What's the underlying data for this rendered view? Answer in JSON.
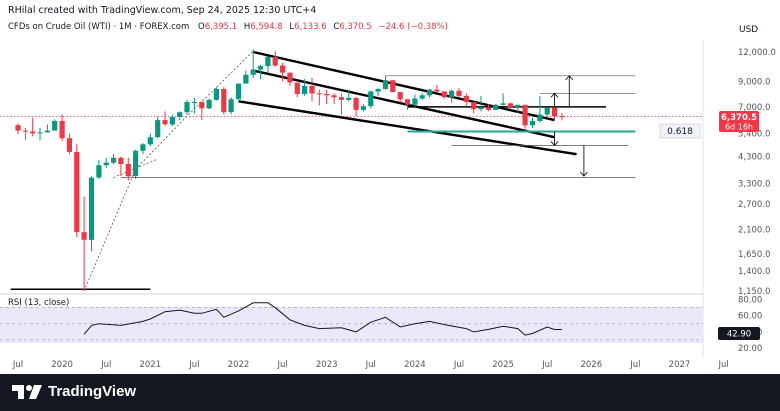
{
  "credit": "RHilal created with TradingView.com, Sep 24, 2025 12:30 UTC+4",
  "instrument": "CFDs on Crude Oil (WTI) · 1M · FOREX.com",
  "ohlc": {
    "o_label": "O",
    "o": "6,395.1",
    "h_label": "H",
    "h": "6,594.8",
    "l_label": "L",
    "l": "6,133.6",
    "c_label": "C",
    "c": "6,370.5",
    "change": "−24.6 (−0.38%)"
  },
  "currency": "USD",
  "price_label": {
    "value": "6,370.5",
    "countdown": "6d 16h",
    "color": "#f23645"
  },
  "fib_label": "0.618",
  "rsi": {
    "title": "RSI (13, close)",
    "value": "42.90",
    "ticks": [
      "80.00",
      "60.00",
      "40.00",
      "20.00"
    ]
  },
  "footer": {
    "brand": "TradingView"
  },
  "colors": {
    "up": "#089981",
    "down": "#f23645",
    "rsi_band": "#e7e2f7",
    "fib": "#26a69a"
  },
  "chart_data": {
    "type": "candlestick",
    "scale": "log",
    "ylim": [
      1150,
      13000
    ],
    "y_ticks": [
      "12,000.0",
      "9,000.0",
      "7,000.0",
      "5,400.0",
      "4,300.0",
      "3,300.0",
      "2,700.0",
      "2,100.0",
      "1,650.0",
      "1,400.0",
      "1,150.0"
    ],
    "y_tick_values": [
      12000,
      9000,
      7000,
      5400,
      4300,
      3300,
      2700,
      2100,
      1650,
      1400,
      1150
    ],
    "x_ticks": [
      "Jul",
      "2020",
      "Jul",
      "2021",
      "Jul",
      "2022",
      "Jul",
      "2023",
      "Jul",
      "2024",
      "Jul",
      "2025",
      "Jul",
      "2026",
      "Jul",
      "2027",
      "Jul"
    ],
    "x_tick_months": [
      "2019-07",
      "2020-01",
      "2020-07",
      "2021-01",
      "2021-07",
      "2022-01",
      "2022-07",
      "2023-01",
      "2023-07",
      "2024-01",
      "2024-07",
      "2025-01",
      "2025-07",
      "2026-01",
      "2026-07",
      "2027-01",
      "2027-07"
    ],
    "candles": [
      [
        "2019-07",
        5850,
        5950,
        5350,
        5550
      ],
      [
        "2019-08",
        5550,
        5700,
        5050,
        5500
      ],
      [
        "2019-09",
        5500,
        6300,
        5250,
        5400
      ],
      [
        "2019-10",
        5400,
        5700,
        5050,
        5450
      ],
      [
        "2019-11",
        5450,
        5900,
        5450,
        5550
      ],
      [
        "2019-12",
        5550,
        6200,
        5550,
        6100
      ],
      [
        "2020-01",
        6100,
        6500,
        5000,
        5150
      ],
      [
        "2020-02",
        5150,
        5400,
        4400,
        4500
      ],
      [
        "2020-03",
        4500,
        4850,
        1950,
        2050
      ],
      [
        "2020-04",
        2050,
        2900,
        1150,
        1900
      ],
      [
        "2020-05",
        1900,
        3550,
        1700,
        3500
      ],
      [
        "2020-06",
        3500,
        4150,
        3450,
        3950
      ],
      [
        "2020-07",
        3950,
        4250,
        3850,
        4050
      ],
      [
        "2020-08",
        4050,
        4400,
        4000,
        4250
      ],
      [
        "2020-09",
        4250,
        4300,
        3550,
        4000
      ],
      [
        "2020-10",
        4000,
        4250,
        3400,
        3550
      ],
      [
        "2020-11",
        3550,
        4600,
        3450,
        4550
      ],
      [
        "2020-12",
        4550,
        4900,
        4400,
        4850
      ],
      [
        "2021-01",
        4850,
        5400,
        4750,
        5200
      ],
      [
        "2021-02",
        5200,
        6350,
        5150,
        6150
      ],
      [
        "2021-03",
        6150,
        6700,
        5800,
        5900
      ],
      [
        "2021-04",
        5900,
        6500,
        5800,
        6350
      ],
      [
        "2021-05",
        6350,
        6700,
        6150,
        6650
      ],
      [
        "2021-06",
        6650,
        7500,
        6500,
        7350
      ],
      [
        "2021-07",
        7350,
        7650,
        6550,
        7350
      ],
      [
        "2021-08",
        7350,
        7400,
        6150,
        6900
      ],
      [
        "2021-09",
        6900,
        7600,
        6850,
        7500
      ],
      [
        "2021-10",
        7500,
        8500,
        7450,
        8350
      ],
      [
        "2021-11",
        8350,
        8500,
        6500,
        6650
      ],
      [
        "2021-12",
        6650,
        7700,
        6500,
        7550
      ],
      [
        "2022-01",
        7550,
        8800,
        7500,
        8800
      ],
      [
        "2022-02",
        8800,
        10000,
        8800,
        9600
      ],
      [
        "2022-03",
        9600,
        12300,
        9300,
        10100
      ],
      [
        "2022-04",
        10100,
        10600,
        9200,
        10450
      ],
      [
        "2022-05",
        10450,
        11500,
        9800,
        11450
      ],
      [
        "2022-06",
        11450,
        12100,
        10400,
        10500
      ],
      [
        "2022-07",
        10500,
        10800,
        9000,
        9800
      ],
      [
        "2022-08",
        9800,
        9800,
        8600,
        8900
      ],
      [
        "2022-09",
        8900,
        8900,
        7700,
        7950
      ],
      [
        "2022-10",
        7950,
        9200,
        7800,
        8600
      ],
      [
        "2022-11",
        8600,
        9300,
        7400,
        8000
      ],
      [
        "2022-12",
        8000,
        8300,
        7100,
        7950
      ],
      [
        "2023-01",
        7950,
        8300,
        7200,
        7850
      ],
      [
        "2023-02",
        7850,
        8000,
        7200,
        7700
      ],
      [
        "2023-03",
        7700,
        8000,
        6500,
        7500
      ],
      [
        "2023-04",
        7500,
        8300,
        7400,
        7650
      ],
      [
        "2023-05",
        7650,
        7700,
        6400,
        6800
      ],
      [
        "2023-06",
        6800,
        7200,
        6700,
        7050
      ],
      [
        "2023-07",
        7050,
        8200,
        6900,
        8150
      ],
      [
        "2023-08",
        8150,
        8400,
        7800,
        8350
      ],
      [
        "2023-09",
        8350,
        9500,
        8300,
        9100
      ],
      [
        "2023-10",
        9100,
        9000,
        8100,
        8100
      ],
      [
        "2023-11",
        8100,
        8000,
        7300,
        7550
      ],
      [
        "2023-12",
        7550,
        7500,
        6800,
        7150
      ],
      [
        "2024-01",
        7150,
        7900,
        7000,
        7600
      ],
      [
        "2024-02",
        7600,
        8000,
        7500,
        7850
      ],
      [
        "2024-03",
        7850,
        8350,
        7650,
        8300
      ],
      [
        "2024-04",
        8300,
        8700,
        8100,
        8150
      ],
      [
        "2024-05",
        8150,
        8150,
        7600,
        7700
      ],
      [
        "2024-06",
        7700,
        8300,
        7300,
        8200
      ],
      [
        "2024-07",
        8200,
        8400,
        7700,
        7800
      ],
      [
        "2024-08",
        7800,
        8000,
        7100,
        7350
      ],
      [
        "2024-09",
        7350,
        7300,
        6550,
        6850
      ],
      [
        "2024-10",
        6850,
        7800,
        6700,
        6950
      ],
      [
        "2024-11",
        6950,
        7200,
        6700,
        6800
      ],
      [
        "2024-12",
        6800,
        7200,
        6800,
        7150
      ],
      [
        "2025-01",
        7150,
        8000,
        7100,
        7250
      ],
      [
        "2025-02",
        7250,
        7300,
        6900,
        7000
      ],
      [
        "2025-03",
        7000,
        7100,
        6600,
        7150
      ],
      [
        "2025-04",
        7150,
        7150,
        5650,
        5850
      ],
      [
        "2025-05",
        5850,
        6300,
        5700,
        6100
      ],
      [
        "2025-06",
        6100,
        7800,
        6000,
        6500
      ],
      [
        "2025-07",
        6500,
        7000,
        6400,
        6950
      ],
      [
        "2025-08",
        6950,
        6950,
        6200,
        6400
      ],
      [
        "2025-09",
        6395.1,
        6594.8,
        6133.6,
        6370.5
      ]
    ],
    "rsi_values": [
      [
        "2020-04",
        37
      ],
      [
        "2020-05",
        48
      ],
      [
        "2020-06",
        50
      ],
      [
        "2020-09",
        48
      ],
      [
        "2020-12",
        53
      ],
      [
        "2021-01",
        56
      ],
      [
        "2021-03",
        65
      ],
      [
        "2021-05",
        67
      ],
      [
        "2021-07",
        63
      ],
      [
        "2021-08",
        63
      ],
      [
        "2021-10",
        68
      ],
      [
        "2021-11",
        58
      ],
      [
        "2022-01",
        66
      ],
      [
        "2022-03",
        76
      ],
      [
        "2022-05",
        76
      ],
      [
        "2022-06",
        70
      ],
      [
        "2022-08",
        55
      ],
      [
        "2022-10",
        48
      ],
      [
        "2022-12",
        44
      ],
      [
        "2023-03",
        45
      ],
      [
        "2023-05",
        40
      ],
      [
        "2023-07",
        52
      ],
      [
        "2023-09",
        58
      ],
      [
        "2023-11",
        46
      ],
      [
        "2024-01",
        50
      ],
      [
        "2024-03",
        53
      ],
      [
        "2024-05",
        49
      ],
      [
        "2024-08",
        44
      ],
      [
        "2024-09",
        40
      ],
      [
        "2024-11",
        43
      ],
      [
        "2025-01",
        47
      ],
      [
        "2025-03",
        44
      ],
      [
        "2025-04",
        36
      ],
      [
        "2025-05",
        38
      ],
      [
        "2025-07",
        46
      ],
      [
        "2025-08",
        42.9
      ],
      [
        "2025-09",
        42.9
      ]
    ],
    "trendlines": [
      {
        "name": "channel-upper",
        "p1": [
          "2022-03",
          12000
        ],
        "p2": [
          "2025-08",
          6150
        ]
      },
      {
        "name": "channel-middle",
        "p1": [
          "2022-03",
          10000
        ],
        "p2": [
          "2025-08",
          5200
        ]
      },
      {
        "name": "channel-lower",
        "p1": [
          "2022-01",
          7400
        ],
        "p2": [
          "2025-11",
          4400
        ]
      },
      {
        "name": "support-low",
        "p1": [
          "2019-06",
          1170
        ],
        "p2": [
          "2021-01",
          1170
        ]
      },
      {
        "name": "resistance-7000",
        "p1": [
          "2023-12",
          7000
        ],
        "p2": [
          "2026-03",
          7000
        ]
      },
      {
        "name": "level-9500",
        "p1": [
          "2023-09",
          9500
        ],
        "p2": [
          "2026-07",
          9500
        ]
      },
      {
        "name": "level-8000",
        "p1": [
          "2025-06",
          8000
        ],
        "p2": [
          "2026-07",
          8000
        ]
      },
      {
        "name": "level-4800",
        "p1": [
          "2024-06",
          4800
        ],
        "p2": [
          "2026-06",
          4800
        ]
      },
      {
        "name": "level-3500",
        "p1": [
          "2020-09",
          3500
        ],
        "p2": [
          "2026-07",
          3500
        ]
      },
      {
        "name": "fib-0.618",
        "p1": [
          "2023-12",
          5500
        ],
        "p2": [
          "2026-07",
          5500
        ]
      }
    ],
    "projection_path": [
      [
        "2020-04",
        1150
      ],
      [
        "2020-11",
        3800
      ],
      [
        "2021-06",
        6400
      ],
      [
        "2022-03",
        12100
      ]
    ],
    "projection_path_2": [
      [
        "2020-08",
        3500
      ],
      [
        "2021-02",
        4200
      ]
    ],
    "arrows": [
      {
        "name": "arrow-up-target",
        "x": "2025-10",
        "from": 7000,
        "to": 9500
      },
      {
        "name": "arrow-up-small",
        "x": "2025-08",
        "from": 7000,
        "to": 8000
      },
      {
        "name": "arrow-down-small",
        "x": "2025-08",
        "from": 5500,
        "to": 4800
      },
      {
        "name": "arrow-down-target",
        "x": "2025-12",
        "from": 4800,
        "to": 3550
      }
    ]
  }
}
